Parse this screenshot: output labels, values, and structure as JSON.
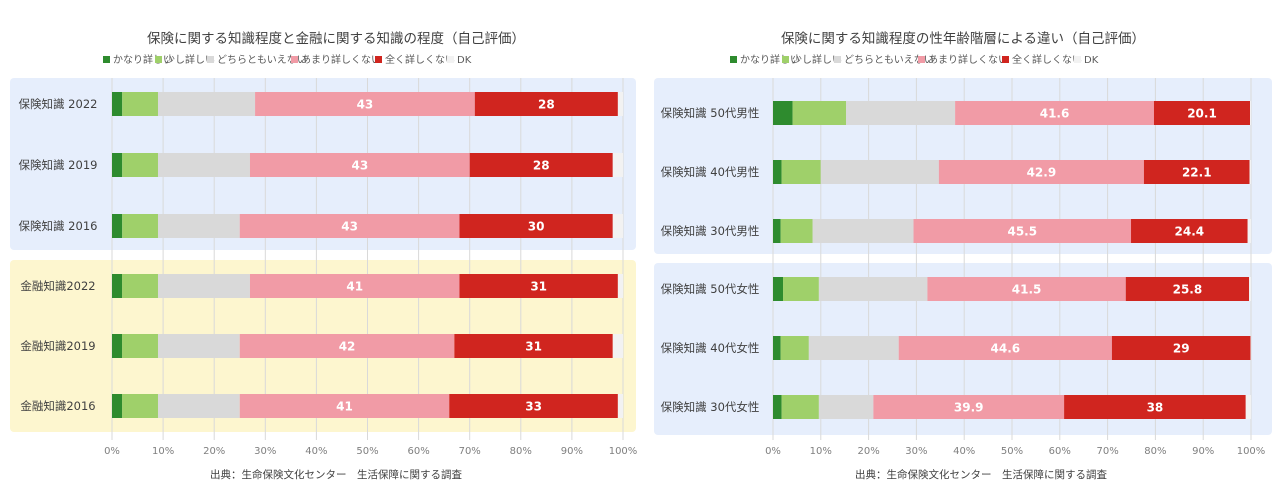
{
  "colors": {
    "series": [
      "#2e8b2e",
      "#9fd06a",
      "#d9d9d9",
      "#f19ba6",
      "#d0251f",
      "#f2f2f2"
    ],
    "blue_band": "#e6eefc",
    "yellow_band": "#fdf6cf",
    "grid": "#d9d9d9"
  },
  "chart_data": [
    {
      "type": "bar",
      "orientation": "horizontal",
      "stacked": true,
      "title": "保険に関する知識程度と金融に関する知識の程度（自己評価）",
      "legend": [
        "かなり詳しい",
        "少し詳しい",
        "どちらともいえない",
        "あまり詳しくない",
        "全く詳しくない",
        "DK"
      ],
      "legend_position": "top",
      "categories": [
        "保険知識 2022",
        "保険知識 2019",
        "保険知識 2016",
        "金融知識2022",
        "金融知識2019",
        "金融知識2016"
      ],
      "series": [
        {
          "name": "かなり詳しい",
          "values": [
            2,
            2,
            2,
            2,
            2,
            2
          ]
        },
        {
          "name": "少し詳しい",
          "values": [
            7,
            7,
            7,
            7,
            7,
            7
          ]
        },
        {
          "name": "どちらともいえない",
          "values": [
            19,
            18,
            16,
            18,
            16,
            16
          ]
        },
        {
          "name": "あまり詳しくない",
          "values": [
            43,
            43,
            43,
            41,
            42,
            41
          ]
        },
        {
          "name": "全く詳しくない",
          "values": [
            28,
            28,
            30,
            31,
            31,
            33
          ]
        },
        {
          "name": "DK",
          "values": [
            1,
            2,
            2,
            1,
            2,
            1
          ]
        }
      ],
      "data_labels": [
        [
          43,
          28
        ],
        [
          43,
          28
        ],
        [
          43,
          30
        ],
        [
          41,
          31
        ],
        [
          42,
          31
        ],
        [
          41,
          33
        ]
      ],
      "xlim": [
        0,
        100
      ],
      "x_ticks": [
        "0%",
        "10%",
        "20%",
        "30%",
        "40%",
        "50%",
        "60%",
        "70%",
        "80%",
        "90%",
        "100%"
      ],
      "grid": true,
      "group_bands": [
        "blue",
        "yellow"
      ],
      "source": "出典：生命保険文化センター　生活保障に関する調査"
    },
    {
      "type": "bar",
      "orientation": "horizontal",
      "stacked": true,
      "title": "保険に関する知識程度の性年齢階層による違い（自己評価）",
      "legend": [
        "かなり詳しい",
        "少し詳しい",
        "どちらともいえない",
        "あまり詳しくない",
        "全く詳しくない",
        "DK"
      ],
      "legend_position": "top",
      "categories": [
        "保険知識 50代男性",
        "保険知識 40代男性",
        "保険知識 30代男性",
        "保険知識 50代女性",
        "保険知識 40代女性",
        "保険知識 30代女性"
      ],
      "series": [
        {
          "name": "かなり詳しい",
          "values": [
            4.1,
            1.8,
            1.6,
            2.1,
            1.6,
            1.8
          ]
        },
        {
          "name": "少し詳しい",
          "values": [
            11.2,
            8.2,
            6.7,
            7.5,
            5.9,
            7.8
          ]
        },
        {
          "name": "どちらともいえない",
          "values": [
            22.8,
            24.7,
            21.1,
            22.7,
            18.8,
            11.4
          ]
        },
        {
          "name": "あまり詳しくない",
          "values": [
            41.6,
            42.9,
            45.5,
            41.5,
            44.6,
            39.9
          ]
        },
        {
          "name": "全く詳しくない",
          "values": [
            20.1,
            22.1,
            24.4,
            25.8,
            29,
            38
          ]
        },
        {
          "name": "DK",
          "values": [
            0.2,
            0.3,
            0.7,
            0.4,
            0.1,
            1.1
          ]
        }
      ],
      "data_labels": [
        [
          41.6,
          20.1
        ],
        [
          42.9,
          22.1
        ],
        [
          45.5,
          24.4
        ],
        [
          41.5,
          25.8
        ],
        [
          44.6,
          29
        ],
        [
          39.9,
          38
        ]
      ],
      "xlim": [
        0,
        100
      ],
      "x_ticks": [
        "0%",
        "10%",
        "20%",
        "30%",
        "40%",
        "50%",
        "60%",
        "70%",
        "80%",
        "90%",
        "100%"
      ],
      "grid": true,
      "group_bands": [
        "blue",
        "blue"
      ],
      "source": "出典：生命保険文化センター　生活保障に関する調査"
    }
  ]
}
